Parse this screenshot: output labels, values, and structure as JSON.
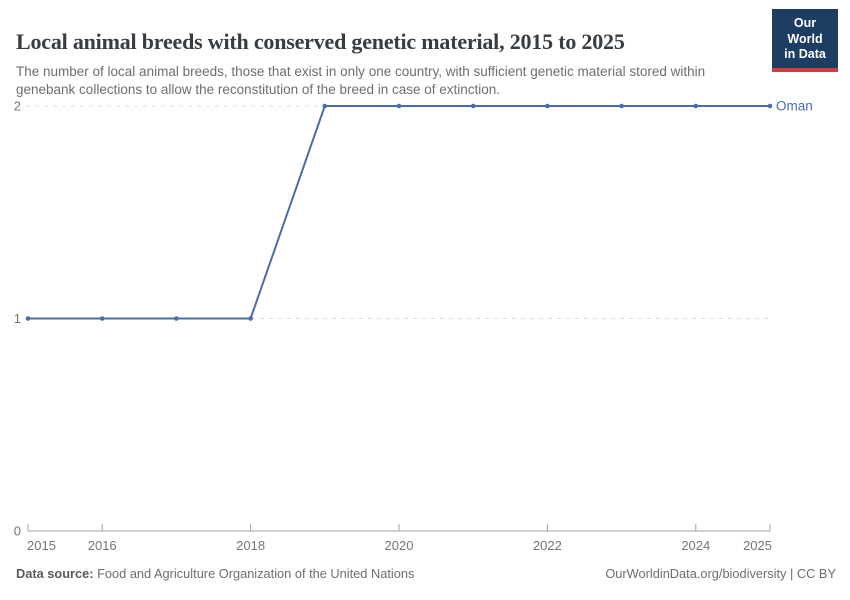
{
  "header": {
    "title": "Local animal breeds with conserved genetic material, 2015 to 2025",
    "subtitle": "The number of local animal breeds, those that exist in only one country, with sufficient genetic material stored within genebank collections to allow the reconstitution of the breed in case of extinction.",
    "logo": {
      "line1": "Our World",
      "line2": "in Data"
    }
  },
  "chart_data": {
    "type": "line",
    "title": "Local animal breeds with conserved genetic material, 2015 to 2025",
    "x": [
      2015,
      2016,
      2017,
      2018,
      2019,
      2020,
      2021,
      2022,
      2023,
      2024,
      2025
    ],
    "series": [
      {
        "name": "Oman",
        "values": [
          1,
          1,
          1,
          1,
          2,
          2,
          2,
          2,
          2,
          2,
          2
        ]
      }
    ],
    "x_ticks": [
      2015,
      2016,
      2018,
      2020,
      2022,
      2024,
      2025
    ],
    "y_ticks": [
      0,
      1,
      2
    ],
    "xlim": [
      2015,
      2025
    ],
    "ylim": [
      0,
      2
    ],
    "grid": "horizontal-dashed",
    "legend": "line-end-label"
  },
  "footer": {
    "datasource_label": "Data source:",
    "datasource_value": "Food and Agriculture Organization of the United Nations",
    "credit": "OurWorldinData.org/biodiversity | CC BY"
  },
  "colors": {
    "series_line": "#4C6CA8",
    "grid": "#dcdcdc",
    "axis": "#a0a0a0",
    "tick_label": "#757575",
    "logo_bg": "#1d3d63",
    "logo_accent": "#cf3e41"
  }
}
